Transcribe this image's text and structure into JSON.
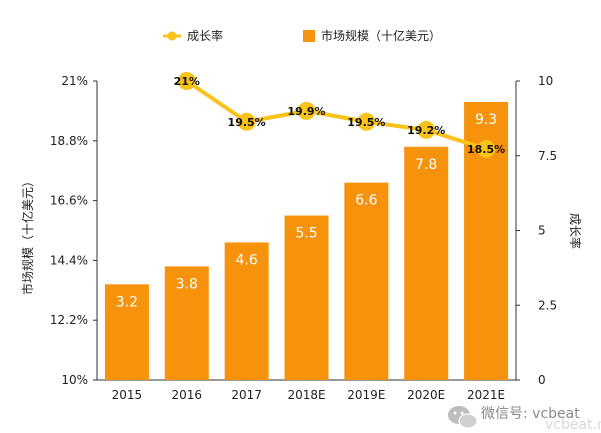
{
  "chart_data": {
    "type": "bar",
    "categories": [
      "2015",
      "2016",
      "2017",
      "2018E",
      "2019E",
      "2020E",
      "2021E"
    ],
    "series": [
      {
        "name": "市场规模（十亿美元）",
        "type": "bar",
        "axis": "right",
        "values": [
          3.2,
          3.8,
          4.6,
          5.5,
          6.6,
          7.8,
          9.3
        ],
        "labels": [
          "3.2",
          "3.8",
          "4.6",
          "5.5",
          "6.6",
          "7.8",
          "9.3"
        ],
        "color": "#F7920D"
      },
      {
        "name": "成长率",
        "type": "line",
        "axis": "left",
        "values": [
          null,
          21.0,
          19.5,
          19.9,
          19.5,
          19.2,
          18.5
        ],
        "labels": [
          "",
          "21%",
          "19.5%",
          "19.9%",
          "19.5%",
          "19.2%",
          "18.5%"
        ],
        "color": "#F9C31A"
      }
    ],
    "left_axis": {
      "label": "市场规模（十亿美元）",
      "ylim": [
        10,
        21
      ],
      "ticks": [
        "10%",
        "12.2%",
        "14.4%",
        "16.6%",
        "18.8%",
        "21%"
      ]
    },
    "right_axis": {
      "label": "成长率",
      "ylim": [
        0,
        10
      ],
      "ticks": [
        "0",
        "2.5",
        "5",
        "7.5",
        "10"
      ]
    },
    "legend": {
      "placement": "top-center"
    },
    "grid": false
  },
  "watermark": {
    "text": "微信号: vcbeat",
    "site": "vcbeat.net"
  }
}
